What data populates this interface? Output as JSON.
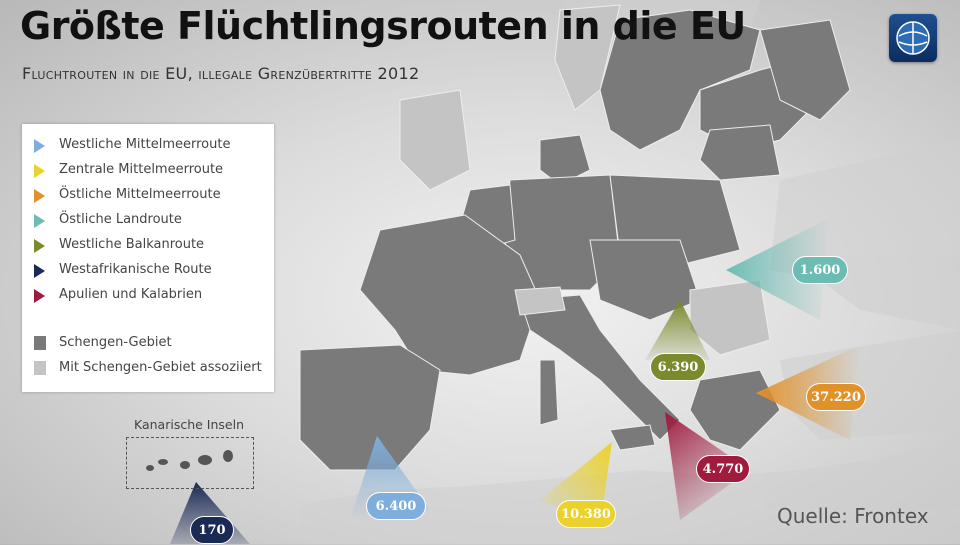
{
  "title": "Größte Flüchtlingsrouten in die EU",
  "subtitle": "Fluchtrouten in die EU, illegale Grenzübertritte 2012",
  "logo_icon": "tagesschau-logo-icon",
  "legend": {
    "routes": [
      {
        "label": "Westliche Mittelmeerroute",
        "color": "#7faedc"
      },
      {
        "label": "Zentrale Mittelmeerroute",
        "color": "#ead12b"
      },
      {
        "label": "Östliche Mittelmeerroute",
        "color": "#e0912a"
      },
      {
        "label": "Östliche Landroute",
        "color": "#6cbcb4"
      },
      {
        "label": "Westliche Balkanroute",
        "color": "#7a8a2c"
      },
      {
        "label": "Westafrikanische Route",
        "color": "#1b2a55"
      },
      {
        "label": "Apulien und Kalabrien",
        "color": "#a01c3f"
      }
    ],
    "areas": [
      {
        "label": "Schengen-Gebiet",
        "color": "#7a7a7a"
      },
      {
        "label": "Mit Schengen-Gebiet assoziiert",
        "color": "#c4c4c4"
      }
    ]
  },
  "canary_label": "Kanarische Inseln",
  "source": "Quelle: Frontex",
  "routes": [
    {
      "name": "Westliche Mittelmeerroute",
      "value": "6.400"
    },
    {
      "name": "Zentrale Mittelmeerroute",
      "value": "10.380"
    },
    {
      "name": "Östliche Mittelmeerroute",
      "value": "37.220"
    },
    {
      "name": "Östliche Landroute",
      "value": "1.600"
    },
    {
      "name": "Westliche Balkanroute",
      "value": "6.390"
    },
    {
      "name": "Westafrikanische Route",
      "value": "170"
    },
    {
      "name": "Apulien und Kalabrien",
      "value": "4.770"
    }
  ]
}
